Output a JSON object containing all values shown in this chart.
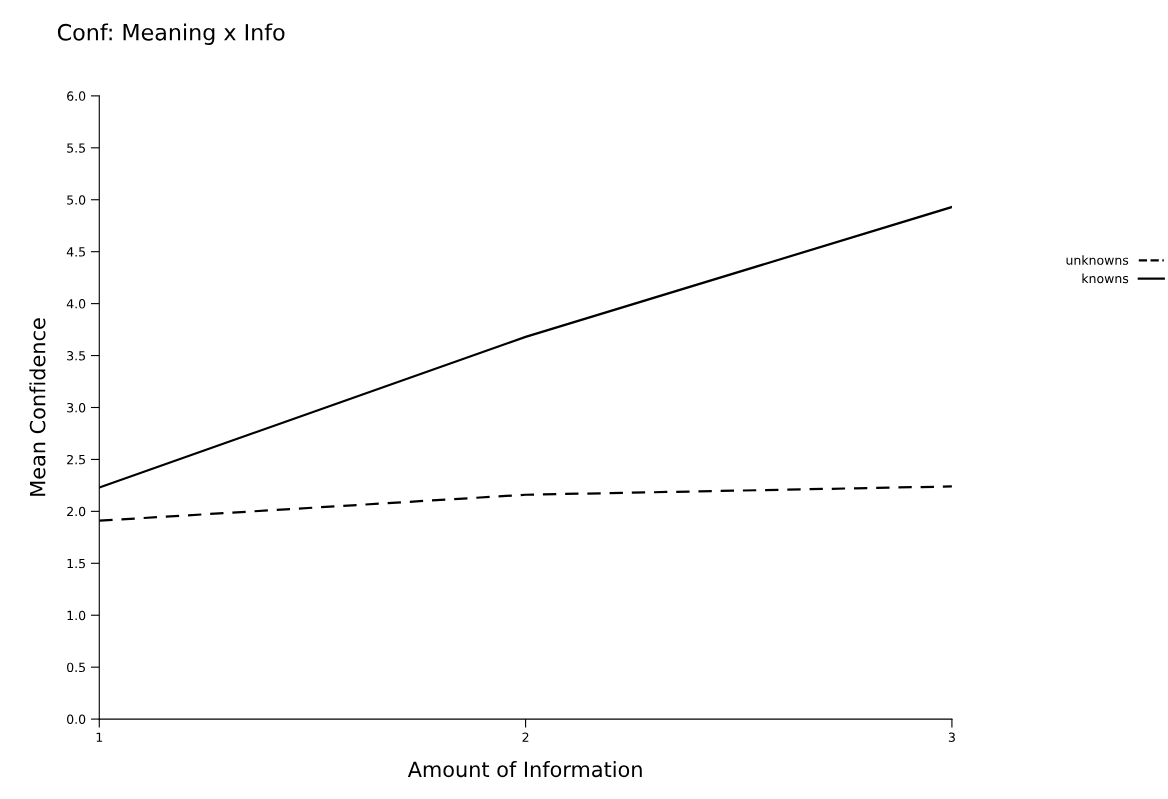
{
  "chart_data": {
    "type": "line",
    "title": "Conf: Meaning x Info",
    "xlabel": "Amount of Information",
    "ylabel": "Mean Confidence",
    "x": [
      1,
      2,
      3
    ],
    "series": [
      {
        "name": "unknowns",
        "color": "#000000",
        "line_style": "dashed",
        "values": [
          1.91,
          2.16,
          2.24
        ]
      },
      {
        "name": "knowns",
        "color": "#000000",
        "line_style": "solid",
        "values": [
          2.23,
          3.68,
          4.93
        ]
      }
    ],
    "xlim": [
      1,
      3
    ],
    "xticks": [
      1,
      2,
      3
    ],
    "ylim": [
      0,
      6
    ],
    "yticks": [
      {
        "value": 0,
        "label": "0.0"
      },
      {
        "value": 0.5,
        "label": "0.5"
      },
      {
        "value": 1,
        "label": "1.0"
      },
      {
        "value": 1.5,
        "label": "1.5"
      },
      {
        "value": 2,
        "label": "2.0"
      },
      {
        "value": 2.5,
        "label": "2.5"
      },
      {
        "value": 3,
        "label": "3.0"
      },
      {
        "value": 3.5,
        "label": "3.5"
      },
      {
        "value": 4,
        "label": "4.0"
      },
      {
        "value": 4.5,
        "label": "4.5"
      },
      {
        "value": 5,
        "label": "5.0"
      },
      {
        "value": 5.5,
        "label": "5.5"
      },
      {
        "value": 6,
        "label": "6.0"
      }
    ],
    "grid": false,
    "legend": "right",
    "marker": "none"
  }
}
